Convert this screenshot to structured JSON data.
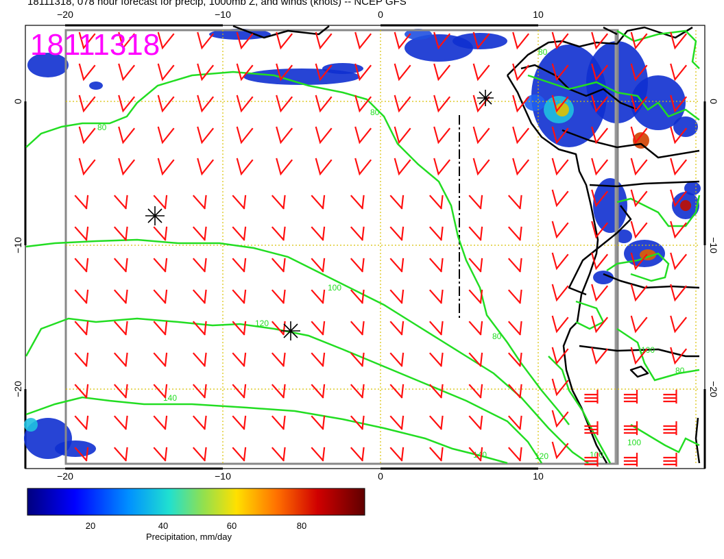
{
  "header": {
    "title": "18111318, 078 hour forecast for precip, 1000mb Z, and winds (knots) -- NCEP GFS",
    "stamp": "18111318"
  },
  "axes": {
    "lon_ticks": [
      "−20",
      "−10",
      "0",
      "10"
    ],
    "lat_ticks": [
      "0",
      "−10",
      "−20"
    ]
  },
  "contour_labels": [
    "80",
    "80",
    "100",
    "120",
    "140",
    "80",
    "100",
    "120",
    "140",
    "100",
    "100",
    "80",
    "80"
  ],
  "colorbar": {
    "ticks": [
      "20",
      "40",
      "60",
      "80"
    ],
    "label": "Precipitation, mm/day",
    "colors": [
      "#00007f",
      "#0000ff",
      "#00b0ff",
      "#20e0c0",
      "#a0e040",
      "#ffe000",
      "#ff7000",
      "#d00000",
      "#600000"
    ]
  },
  "colors": {
    "contour": "#22dd22",
    "barb": "#ff1010",
    "stamp": "#ff00ff",
    "coast": "#000000",
    "grid": "#d8c000"
  }
}
